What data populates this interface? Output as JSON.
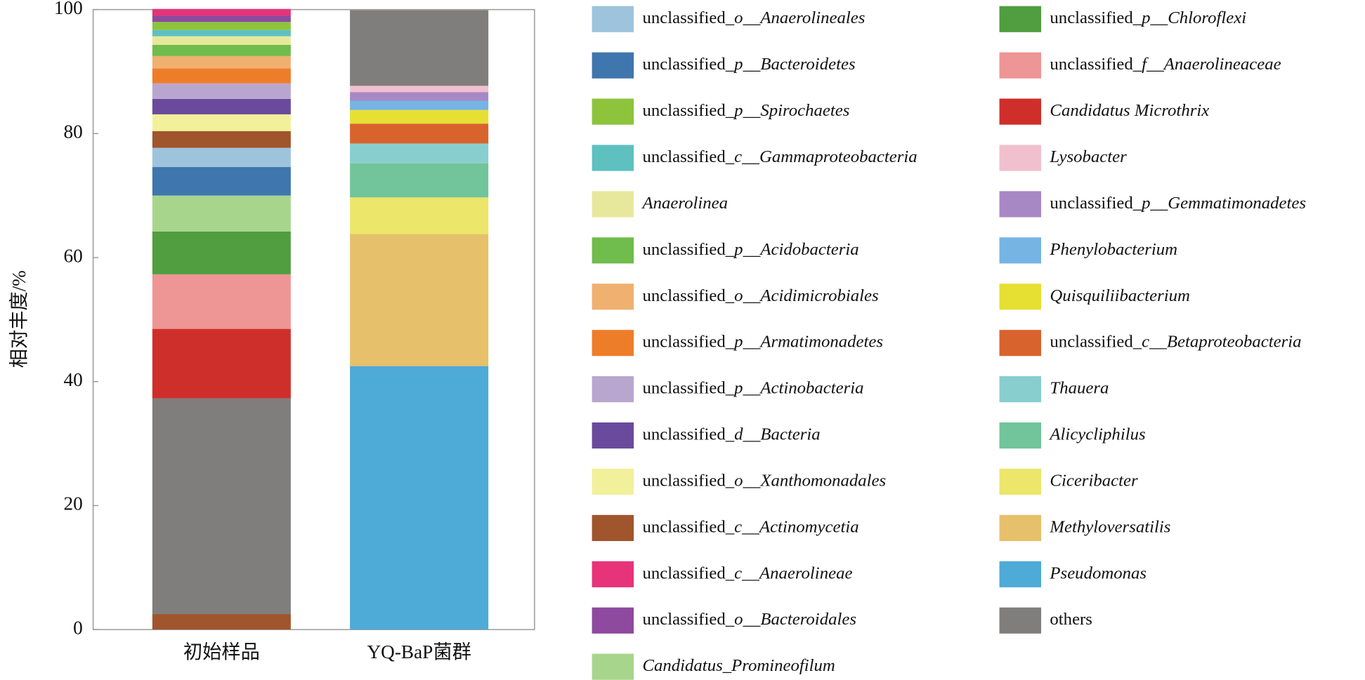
{
  "chart_data": {
    "type": "stacked_bar",
    "ylabel": "相对丰度/%",
    "categories": [
      "初始样品",
      "YQ-BaP菌群"
    ],
    "ylim": [
      0,
      100
    ],
    "yticks": [
      0,
      20,
      40,
      60,
      80,
      100
    ],
    "series": [
      {
        "name": "Pseudomonas",
        "color": "#4eaad6",
        "values": [
          0,
          42.5
        ]
      },
      {
        "name": "Methyloversatilis",
        "color": "#e6c06a",
        "values": [
          0,
          21.3
        ]
      },
      {
        "name": "Ciceribacter",
        "color": "#ece66a",
        "values": [
          0,
          5.9
        ]
      },
      {
        "name": "Alicycliphilus",
        "color": "#72c49a",
        "values": [
          0,
          5.5
        ]
      },
      {
        "name": "Thauera",
        "color": "#88cece",
        "values": [
          0,
          3.2
        ]
      },
      {
        "name": "unclassified_c__Betaproteobacteria",
        "color": "#d9632c",
        "values": [
          0,
          3.2
        ]
      },
      {
        "name": "Quisquiliibacterium",
        "color": "#e6e032",
        "values": [
          0,
          2.2
        ]
      },
      {
        "name": "Phenylobacterium",
        "color": "#76b4e4",
        "values": [
          0,
          1.5
        ]
      },
      {
        "name": "unclassified_p__Gemmatimonadetes",
        "color": "#a888c4",
        "values": [
          0,
          1.4
        ]
      },
      {
        "name": "Lysobacter",
        "color": "#f0c0ce",
        "values": [
          0,
          1.0
        ]
      },
      {
        "color": "#a0552d",
        "values": [
          2.5,
          0
        ]
      },
      {
        "name": "others",
        "color": "#7f7e7c",
        "values": [
          34.8,
          12.2
        ]
      },
      {
        "name": "Candidatus Microthrix",
        "color": "#cf2f2a",
        "values": [
          11.2,
          0
        ]
      },
      {
        "name": "unclassified_f__Anaerolineaceae",
        "color": "#ee9595",
        "values": [
          8.8,
          0
        ]
      },
      {
        "name": "unclassified_p__Chloroflexi",
        "color": "#509e40",
        "values": [
          6.9,
          0
        ]
      },
      {
        "name": "Candidatus_Promineofilum",
        "color": "#a8d58c",
        "values": [
          5.8,
          0
        ]
      },
      {
        "name": "unclassified_p__Bacteroidetes",
        "color": "#3f76ad",
        "values": [
          4.6,
          0
        ]
      },
      {
        "name": "unclassified_o__Anaerolineales",
        "color": "#9ec4dd",
        "values": [
          3.1,
          0
        ]
      },
      {
        "name": "unclassified_c__Actinomycetia",
        "color": "#a0552d",
        "values": [
          2.7,
          0
        ]
      },
      {
        "name": "unclassified_o__Xanthomonadales",
        "color": "#f2f09a",
        "values": [
          2.7,
          0
        ]
      },
      {
        "name": "unclassified_d__Bacteria",
        "color": "#6a4a9c",
        "values": [
          2.5,
          0
        ]
      },
      {
        "name": "unclassified_p__Actinobacteria",
        "color": "#b9a6cf",
        "values": [
          2.5,
          0
        ]
      },
      {
        "name": "unclassified_p__Armatimonadetes",
        "color": "#ee7d2a",
        "values": [
          2.4,
          0
        ]
      },
      {
        "name": "unclassified_o__Acidimicrobiales",
        "color": "#f0b070",
        "values": [
          2.0,
          0
        ]
      },
      {
        "name": "unclassified_p__Acidobacteria",
        "color": "#70bc4c",
        "values": [
          1.8,
          0
        ]
      },
      {
        "name": "Anaerolinea",
        "color": "#e8e89c",
        "values": [
          1.4,
          0
        ]
      },
      {
        "name": "unclassified_c__Gammaproteobacteria",
        "color": "#5fc0c0",
        "values": [
          1.0,
          0
        ]
      },
      {
        "name": "unclassified_p__Spirochaetes",
        "color": "#8dc43c",
        "values": [
          1.3,
          0
        ]
      },
      {
        "name": "unclassified_o__Bacteroidales",
        "color": "#8d4a9e",
        "values": [
          1.0,
          0
        ]
      },
      {
        "name": "unclassified_c__Anaerolineae",
        "color": "#e6337a",
        "values": [
          1.1,
          0
        ]
      }
    ]
  }
}
